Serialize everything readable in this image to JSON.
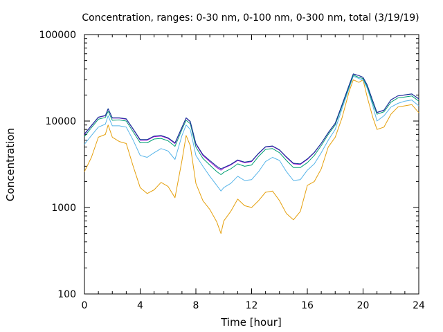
{
  "chart_data": {
    "type": "line",
    "title": "Concentration, ranges: 0-30 nm, 0-100 nm, 0-300 nm, total (3/19/19)",
    "xlabel": "Time [hour]",
    "ylabel": "Concentration",
    "xlim": [
      0,
      24
    ],
    "ylim": [
      100,
      100000
    ],
    "yscale": "log",
    "grid": false,
    "legend": "none",
    "x_ticks": [
      0,
      4,
      8,
      12,
      16,
      20,
      24
    ],
    "x_tick_labels": [
      "0",
      "4",
      "8",
      "12",
      "16",
      "20",
      "24"
    ],
    "y_ticks": [
      100,
      1000,
      10000,
      100000
    ],
    "y_tick_labels": [
      "100",
      "1000",
      "10000",
      "100000"
    ],
    "x": [
      0,
      0.5,
      1,
      1.5,
      1.7,
      2,
      2.5,
      3,
      3.5,
      4,
      4.5,
      5,
      5.5,
      6,
      6.5,
      7,
      7.3,
      7.6,
      8,
      8.5,
      9,
      9.5,
      9.8,
      10,
      10.5,
      11,
      11.5,
      12,
      12.5,
      13,
      13.5,
      14,
      14.5,
      15,
      15.5,
      16,
      16.5,
      17,
      17.5,
      18,
      18.5,
      19,
      19.3,
      19.7,
      20,
      20.3,
      20.7,
      21,
      21.5,
      22,
      22.5,
      23,
      23.5,
      24
    ],
    "series": [
      {
        "color": "#e5a00d",
        "values": [
          2600,
          3800,
          6500,
          7000,
          9000,
          6500,
          5800,
          5500,
          3000,
          1700,
          1450,
          1600,
          1950,
          1750,
          1300,
          3500,
          6800,
          5200,
          1900,
          1200,
          950,
          680,
          500,
          700,
          900,
          1250,
          1050,
          1000,
          1200,
          1500,
          1550,
          1200,
          850,
          720,
          900,
          1800,
          2000,
          2800,
          5000,
          6500,
          11000,
          22000,
          30000,
          28000,
          30000,
          19000,
          11000,
          8000,
          8500,
          12000,
          14500,
          15000,
          15500,
          12500
        ]
      },
      {
        "color": "#56b4e9",
        "values": [
          5400,
          6800,
          8500,
          9200,
          11500,
          8800,
          8800,
          8500,
          6000,
          4000,
          3800,
          4300,
          4800,
          4500,
          3600,
          6800,
          9000,
          8000,
          4000,
          3000,
          2300,
          1800,
          1550,
          1700,
          1900,
          2300,
          2050,
          2100,
          2600,
          3400,
          3800,
          3500,
          2600,
          2050,
          2100,
          2700,
          3200,
          4300,
          6000,
          8000,
          14000,
          24000,
          33000,
          31000,
          30000,
          24000,
          15000,
          10000,
          11500,
          14500,
          16000,
          17000,
          17500,
          15000
        ]
      },
      {
        "color": "#009e73",
        "values": [
          6600,
          8400,
          10500,
          11000,
          13000,
          10200,
          10300,
          10000,
          7500,
          5600,
          5600,
          6200,
          6300,
          5900,
          5100,
          8000,
          10200,
          9300,
          5000,
          3700,
          3100,
          2600,
          2400,
          2550,
          2800,
          3200,
          3000,
          3100,
          3900,
          4700,
          4800,
          4300,
          3500,
          2900,
          2900,
          3300,
          4000,
          5200,
          7000,
          9000,
          15000,
          25000,
          34000,
          32000,
          31000,
          25000,
          16000,
          12000,
          12800,
          16500,
          18500,
          19000,
          19500,
          17000
        ]
      },
      {
        "color": "#9400d3",
        "values": [
          7000,
          8800,
          11000,
          11500,
          13800,
          10800,
          10800,
          10500,
          8000,
          6000,
          6000,
          6600,
          6700,
          6300,
          5500,
          8400,
          10800,
          9800,
          5400,
          4000,
          3400,
          2900,
          2700,
          2850,
          3100,
          3500,
          3300,
          3400,
          4200,
          5000,
          5100,
          4600,
          3800,
          3200,
          3150,
          3600,
          4300,
          5500,
          7300,
          9400,
          15500,
          26000,
          35000,
          33500,
          32000,
          26000,
          17000,
          12500,
          13300,
          17500,
          19500,
          20000,
          20500,
          18000
        ]
      },
      {
        "color": "#0b3d91",
        "values": [
          7100,
          8900,
          11100,
          11600,
          13900,
          10900,
          10900,
          10600,
          8100,
          6100,
          6100,
          6700,
          6800,
          6400,
          5600,
          8500,
          10900,
          9900,
          5500,
          4100,
          3500,
          3000,
          2800,
          2900,
          3150,
          3550,
          3350,
          3450,
          4250,
          5050,
          5150,
          4650,
          3850,
          3250,
          3200,
          3650,
          4350,
          5550,
          7350,
          9450,
          15600,
          26100,
          35100,
          33600,
          32100,
          26100,
          17100,
          12600,
          13400,
          17600,
          19600,
          20100,
          20600,
          18100
        ]
      }
    ]
  }
}
